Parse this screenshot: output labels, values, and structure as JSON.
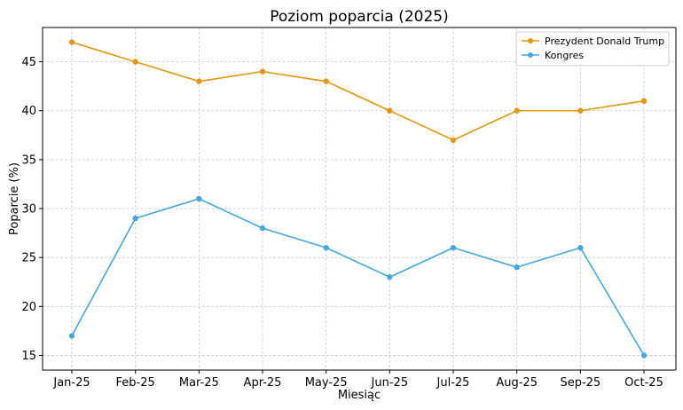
{
  "chart_data": {
    "type": "line",
    "title": "Poziom poparcia (2025)",
    "xlabel": "Miesiąc",
    "ylabel": "Poparcie (%)",
    "categories": [
      "Jan-25",
      "Feb-25",
      "Mar-25",
      "Apr-25",
      "May-25",
      "Jun-25",
      "Jul-25",
      "Aug-25",
      "Sep-25",
      "Oct-25"
    ],
    "ylim": [
      13.5,
      48.5
    ],
    "yticks": [
      15,
      20,
      25,
      30,
      35,
      40,
      45
    ],
    "grid": true,
    "legend_position": "top-right",
    "series": [
      {
        "name": "Prezydent Donald Trump",
        "color": "#E0980E",
        "values": [
          47,
          45,
          43,
          44,
          43,
          40,
          37,
          40,
          40,
          41
        ]
      },
      {
        "name": "Kongres",
        "color": "#45A8DE",
        "values": [
          17,
          29,
          31,
          28,
          26,
          23,
          26,
          24,
          26,
          15
        ]
      }
    ]
  }
}
